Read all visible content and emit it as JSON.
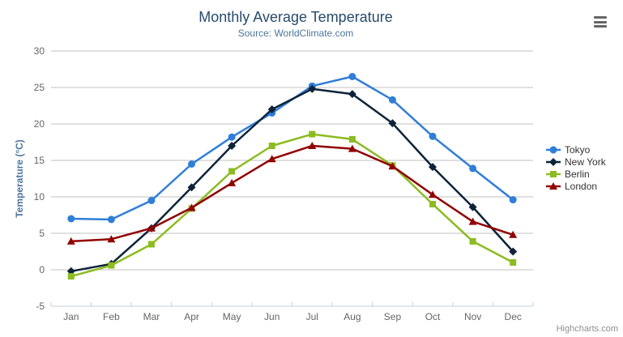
{
  "chart_data": {
    "type": "line",
    "title": "Monthly Average Temperature",
    "subtitle": "Source: WorldClimate.com",
    "categories": [
      "Jan",
      "Feb",
      "Mar",
      "Apr",
      "May",
      "Jun",
      "Jul",
      "Aug",
      "Sep",
      "Oct",
      "Nov",
      "Dec"
    ],
    "xlabel": "",
    "ylabel": "Temperature (°C)",
    "ylim": [
      -5,
      30
    ],
    "ytick_step": 5,
    "grid": true,
    "legend_position": "right",
    "series": [
      {
        "name": "Tokyo",
        "color": "#2f7ed8",
        "marker": "circle",
        "values": [
          7.0,
          6.9,
          9.5,
          14.5,
          18.2,
          21.5,
          25.2,
          26.5,
          23.3,
          18.3,
          13.9,
          9.6
        ]
      },
      {
        "name": "New York",
        "color": "#0d233a",
        "marker": "diamond",
        "values": [
          -0.2,
          0.8,
          5.7,
          11.3,
          17.0,
          22.0,
          24.8,
          24.1,
          20.1,
          14.1,
          8.6,
          2.5
        ]
      },
      {
        "name": "Berlin",
        "color": "#8bbc21",
        "marker": "square",
        "values": [
          -0.9,
          0.6,
          3.5,
          8.4,
          13.5,
          17.0,
          18.6,
          17.9,
          14.3,
          9.0,
          3.9,
          1.0
        ]
      },
      {
        "name": "London",
        "color": "#910000",
        "marker": "triangle",
        "values": [
          3.9,
          4.2,
          5.7,
          8.5,
          11.9,
          15.2,
          17.0,
          16.6,
          14.2,
          10.3,
          6.6,
          4.8
        ]
      }
    ]
  },
  "credit": "Highcharts.com",
  "export_menu_icon": "hamburger-icon",
  "colors": {
    "title": "#274b6d",
    "subtitle": "#4d759e",
    "axis_title": "#4d759e",
    "axis_label": "#666666",
    "grid_line": "#c0c0c0",
    "axis_line": "#c0d0e0",
    "legend_text": "#333333",
    "credit_text": "#8f8f8f"
  }
}
